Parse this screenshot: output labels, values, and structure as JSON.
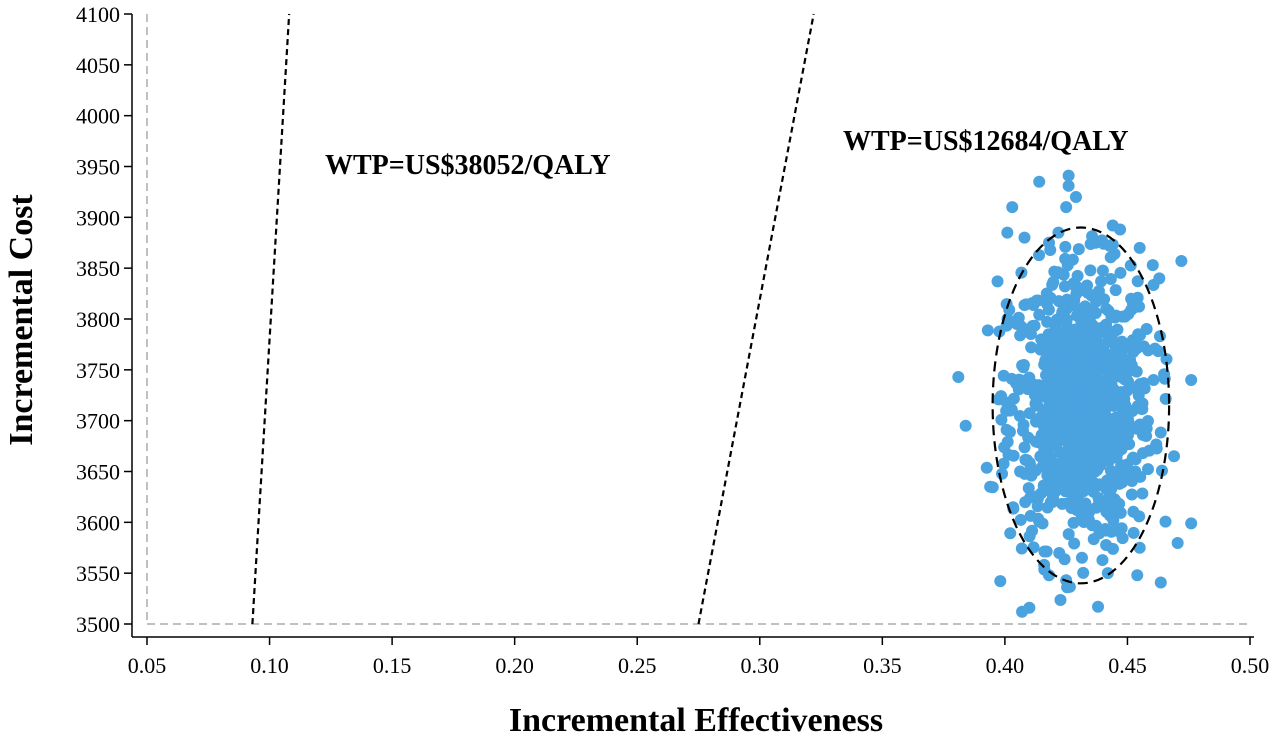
{
  "chart_data": {
    "type": "scatter",
    "title": "",
    "xlabel": "Incremental Effectiveness",
    "ylabel": "Incremental Cost",
    "xlim": [
      0.05,
      0.5
    ],
    "ylim": [
      3500,
      4100
    ],
    "x_ticks": [
      "0.05",
      "0.10",
      "0.15",
      "0.20",
      "0.25",
      "0.30",
      "0.35",
      "0.40",
      "0.45",
      "0.50"
    ],
    "y_ticks": [
      "3500",
      "3550",
      "3600",
      "3650",
      "3700",
      "3750",
      "3800",
      "3850",
      "3900",
      "3950",
      "4000",
      "4050",
      "4100"
    ],
    "grid": false,
    "reference_lines": {
      "x": 0.05,
      "y": 3500
    },
    "wtp_lines": [
      {
        "label": "WTP=US$38052/QALY",
        "points": [
          [
            0.093,
            3500
          ],
          [
            0.108,
            4100
          ]
        ]
      },
      {
        "label": "WTP=US$12684/QALY",
        "points": [
          [
            0.275,
            3500
          ],
          [
            0.322,
            4100
          ]
        ]
      }
    ],
    "confidence_ellipse": {
      "center": [
        0.431,
        3715
      ],
      "radius_x": 0.036,
      "radius_y": 175
    },
    "series": [
      {
        "marker_color": "#4aa3df",
        "points": [
          [
            0.426,
            3941
          ],
          [
            0.426,
            3931
          ],
          [
            0.414,
            3935
          ],
          [
            0.429,
            3920
          ],
          [
            0.425,
            3910
          ],
          [
            0.403,
            3910
          ],
          [
            0.408,
            3880
          ],
          [
            0.455,
            3870
          ],
          [
            0.472,
            3857
          ],
          [
            0.397,
            3837
          ],
          [
            0.381,
            3743
          ],
          [
            0.384,
            3695
          ],
          [
            0.476,
            3740
          ],
          [
            0.476,
            3599
          ],
          [
            0.469,
            3665
          ],
          [
            0.454,
            3548
          ],
          [
            0.407,
            3512
          ],
          [
            0.41,
            3516
          ],
          [
            0.438,
            3517
          ],
          [
            0.425,
            3543
          ],
          [
            0.418,
            3548
          ],
          [
            0.442,
            3550
          ],
          [
            0.394,
            3635
          ],
          [
            0.401,
            3885
          ],
          [
            0.444,
            3892
          ],
          [
            0.447,
            3888
          ],
          [
            0.437,
            3875
          ],
          [
            0.418,
            3875
          ],
          [
            0.463,
            3840
          ],
          [
            0.455,
            3575
          ]
        ]
      }
    ]
  }
}
